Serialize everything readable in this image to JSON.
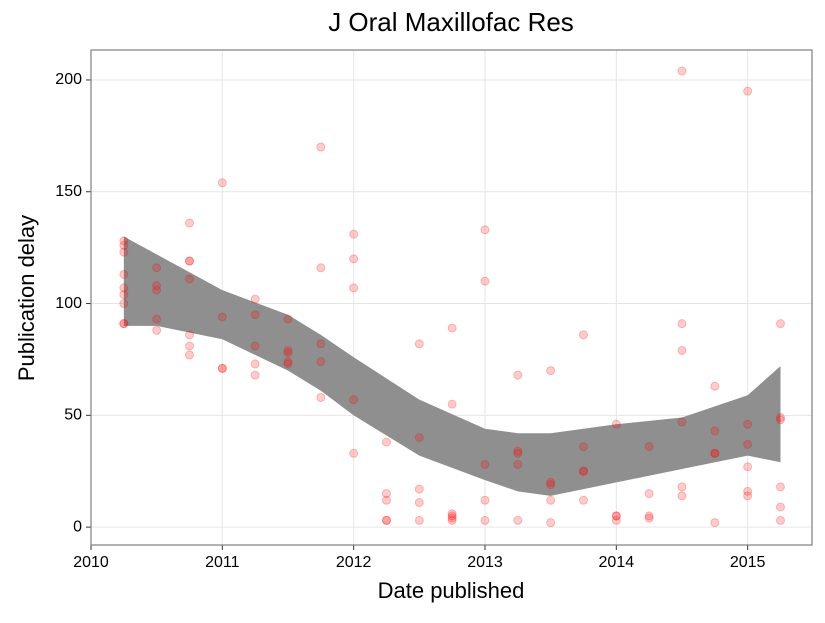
{
  "chart_data": {
    "type": "scatter",
    "title": "J Oral Maxillofac Res",
    "x_label": "Date published",
    "y_label": "Publication delay",
    "xlim": [
      2010,
      2015.49
    ],
    "ylim": [
      -8,
      213.4
    ],
    "xticks": [
      2010,
      2011,
      2012,
      2013,
      2014,
      2015
    ],
    "yticks": [
      0,
      50,
      100,
      150,
      200
    ],
    "grid": true,
    "color": "#ff0000",
    "x": [
      2010.25,
      2010.25,
      2010.25,
      2010.25,
      2010.25,
      2010.25,
      2010.25,
      2010.25,
      2010.25,
      2010.5,
      2010.5,
      2010.5,
      2010.5,
      2010.5,
      2010.75,
      2010.75,
      2010.75,
      2010.75,
      2010.75,
      2010.75,
      2010.75,
      2011,
      2011,
      2011,
      2011,
      2011.25,
      2011.25,
      2011.25,
      2011.25,
      2011.25,
      2011.5,
      2011.5,
      2011.5,
      2011.5,
      2011.5,
      2011.75,
      2011.75,
      2011.75,
      2011.75,
      2011.75,
      2012,
      2012,
      2012,
      2012,
      2012,
      2012.25,
      2012.25,
      2012.25,
      2012.25,
      2012.25,
      2012.5,
      2012.5,
      2012.5,
      2012.5,
      2012.5,
      2012.75,
      2012.75,
      2012.75,
      2012.75,
      2012.75,
      2012.75,
      2013,
      2013,
      2013,
      2013,
      2013,
      2013.25,
      2013.25,
      2013.25,
      2013.25,
      2013.25,
      2013.5,
      2013.5,
      2013.5,
      2013.5,
      2013.5,
      2013.75,
      2013.75,
      2013.75,
      2013.75,
      2013.75,
      2014,
      2014,
      2014,
      2014,
      2014.25,
      2014.25,
      2014.25,
      2014.25,
      2014.5,
      2014.5,
      2014.5,
      2014.5,
      2014.5,
      2014.5,
      2014.75,
      2014.75,
      2014.75,
      2014.75,
      2014.75,
      2015,
      2015,
      2015,
      2015,
      2015,
      2015,
      2015.25,
      2015.25,
      2015.25,
      2015.25,
      2015.25,
      2015.25
    ],
    "values": [
      128,
      126,
      123,
      113,
      107,
      104,
      100,
      91,
      91,
      116,
      108,
      106,
      93,
      88,
      136,
      119,
      119,
      111,
      86,
      81,
      77,
      154,
      94,
      71,
      71,
      102,
      95,
      81,
      73,
      68,
      93,
      79,
      78,
      74,
      73,
      170,
      116,
      82,
      74,
      58,
      131,
      120,
      107,
      57,
      33,
      38,
      15,
      12,
      3,
      3,
      82,
      40,
      17,
      11,
      3,
      89,
      55,
      6,
      5,
      4,
      3,
      133,
      110,
      28,
      12,
      3,
      68,
      34,
      33,
      28,
      3,
      70,
      20,
      19,
      12,
      2,
      86,
      36,
      25,
      25,
      12,
      46,
      5,
      5,
      3,
      36,
      15,
      5,
      4,
      204,
      91,
      79,
      47,
      18,
      14,
      63,
      43,
      33,
      33,
      2,
      195,
      46,
      37,
      27,
      16,
      14,
      91,
      49,
      48,
      18,
      9,
      3
    ],
    "band": {
      "color": "#8f8f8f",
      "x": [
        2010.25,
        2010.5,
        2011,
        2011.5,
        2011.75,
        2012,
        2012.5,
        2013,
        2013.25,
        2013.5,
        2014,
        2014.5,
        2015,
        2015.25
      ],
      "upper": [
        130,
        122,
        106,
        95,
        86,
        76,
        57,
        44,
        42,
        42,
        46,
        49,
        59,
        72
      ],
      "lower": [
        90,
        90,
        84,
        70,
        61,
        50,
        32,
        21,
        16,
        14,
        20,
        26,
        32,
        29
      ]
    }
  }
}
